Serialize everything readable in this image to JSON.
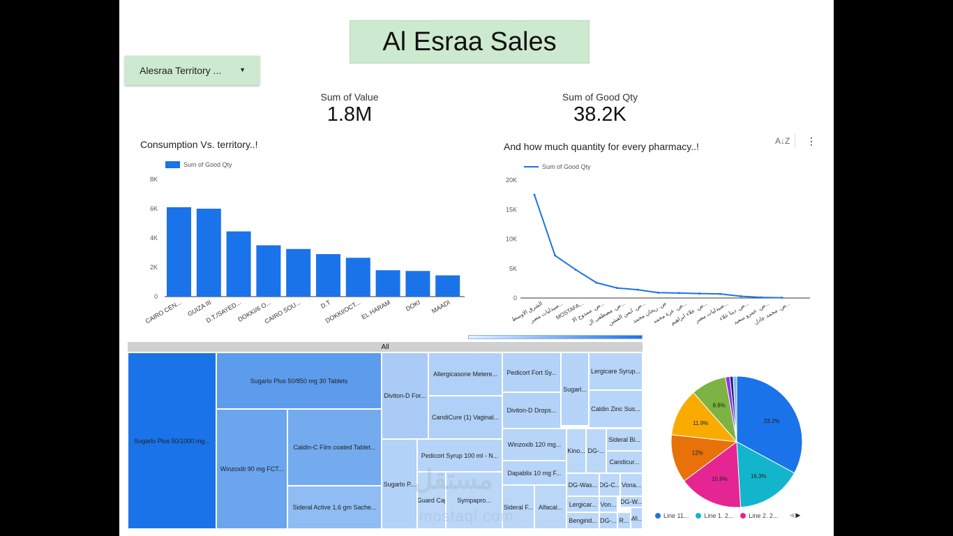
{
  "header": {
    "title": "Al Esraa Sales"
  },
  "filter": {
    "label": "Alesraa Territory ...",
    "icon": "dropdown-caret-icon"
  },
  "kpis": [
    {
      "label": "Sum of Value",
      "value": "1.8M"
    },
    {
      "label": "Sum of Good Qty",
      "value": "38.2K"
    }
  ],
  "bar_chart": {
    "title": "Consumption Vs. territory..!",
    "legend": "Sum of Good Qty",
    "y_ticks": [
      "8K",
      "6K",
      "4K",
      "2K",
      "0"
    ],
    "labels": [
      "CAIRO CEN...",
      "GUIZA III",
      "D.T./SAYED...",
      "DOKKI/6 O...",
      "CAIRO SOU...",
      "D.T",
      "DOKKI/OCT...",
      "EL HARAM",
      "DOKI",
      "MAADI"
    ]
  },
  "line_chart": {
    "title": "And how much quantity for every pharmacy..!",
    "legend": "Sum of Good Qty",
    "y_ticks": [
      "20K",
      "15K",
      "10K",
      "5K",
      "0"
    ],
    "labels": [
      "الشرق الاوسط",
      "صيدليات مصر...",
      "MOSTAFA...",
      "ص. ممدوح الا...",
      "ص. مصطفى ال...",
      "ص. ايمن الفشن...",
      "ص. ريحان محمد",
      "ص. عزة محمد...",
      "ص. علاء ابراهيم...",
      "صيدليات مصر...",
      "ص. دينا علاء...",
      "ص. عمرو سعيد...",
      "ص. محمد عادل..."
    ],
    "sort_icon": "sort-az-icon",
    "more_icon": "more-vert-icon"
  },
  "chart_data": [
    {
      "type": "bar",
      "title": "Consumption Vs. territory..!",
      "categories": [
        "CAIRO CEN...",
        "GUIZA III",
        "D.T./SAYED...",
        "DOKKI/6 O...",
        "CAIRO SOU...",
        "D.T",
        "DOKKI/OCT...",
        "EL HARAM",
        "DOKI",
        "MAADI"
      ],
      "series": [
        {
          "name": "Sum of Good Qty",
          "values": [
            6100,
            6000,
            4450,
            3500,
            3250,
            2900,
            2650,
            1800,
            1750,
            1450
          ]
        }
      ],
      "ylim": [
        0,
        8000
      ]
    },
    {
      "type": "line",
      "title": "And how much quantity for every pharmacy..!",
      "series": [
        {
          "name": "Sum of Good Qty",
          "values": [
            17500,
            7200,
            4800,
            2600,
            1700,
            1400,
            900,
            850,
            750,
            700,
            300,
            100,
            50
          ]
        }
      ],
      "ylim": [
        0,
        20000
      ]
    },
    {
      "type": "pie",
      "slices": [
        {
          "label": "Line 11...",
          "value": 33.2,
          "color": "#1a73e8",
          "text": "33.2%"
        },
        {
          "label": "Line 1. 2...",
          "value": 16.3,
          "color": "#12b5cb",
          "text": "16.3%"
        },
        {
          "label": "Line 2. 2...",
          "value": 15.9,
          "color": "#e52592",
          "text": "15.9%"
        },
        {
          "label": "",
          "value": 12.0,
          "color": "#e8710a",
          "text": "12%"
        },
        {
          "label": "",
          "value": 11.9,
          "color": "#f9ab00",
          "text": "11.9%"
        },
        {
          "label": "",
          "value": 8.8,
          "color": "#7cb342",
          "text": "8.8%"
        },
        {
          "label": "",
          "value": 1.1,
          "color": "#9334e6",
          "text": ""
        },
        {
          "label": "",
          "value": 0.8,
          "color": "#1a237e",
          "text": ""
        },
        {
          "label": "",
          "value": 0.9,
          "color": "#8ab4f8",
          "text": ""
        }
      ]
    }
  ],
  "treemap": {
    "header": "All",
    "cells": [
      {
        "label": "Sugarlo Plus 50/1000 mg...",
        "color": "#1a73e8"
      },
      {
        "label": "Sugarlo Plus 50/850 mg 30 Tablets",
        "color": "#5d9cec"
      },
      {
        "label": "Winzoxib 90 mg FCT...",
        "color": "#6aa5ee"
      },
      {
        "label": "Caldin-C Film coated Tablet...",
        "color": "#74abef"
      },
      {
        "label": "Sideral Active 1.6 gm Sache...",
        "color": "#8fbcf3"
      },
      {
        "label": "Diviton-D For...",
        "color": "#a9cbf5"
      },
      {
        "label": "Allergicasone Metere...",
        "color": "#b0d0f7"
      },
      {
        "label": "CandiCure (1) Vaginal...",
        "color": "#b0d0f7"
      },
      {
        "label": "Pedicort Fort Sy...",
        "color": "#b3d2f7"
      },
      {
        "label": "Diviton-D Drops...",
        "color": "#b3d2f7"
      },
      {
        "label": "Sugarl...",
        "color": "#b5d4f8"
      },
      {
        "label": "Lergicare Syrup...",
        "color": "#b7d5f8"
      },
      {
        "label": "Caldin Zinc Sus...",
        "color": "#b7d5f8"
      },
      {
        "label": "Sugarlo P...",
        "color": "#b3d2f7"
      },
      {
        "label": "Pedicort Syrup 100 ml - N...",
        "color": "#b5d4f8"
      },
      {
        "label": "TriGuard Cap...",
        "color": "#bad7f8"
      },
      {
        "label": "Sympapro...",
        "color": "#bad7f8"
      },
      {
        "label": "Winzoxib 120 mg...",
        "color": "#b7d5f8"
      },
      {
        "label": "Dapablix 10 mg F...",
        "color": "#b7d5f8"
      },
      {
        "label": "Sideral F...",
        "color": "#bad7f8"
      },
      {
        "label": "Alfacal...",
        "color": "#bad7f8"
      },
      {
        "label": "Kino...",
        "color": "#bad7f8"
      },
      {
        "label": "DG-...",
        "color": "#bad7f8"
      },
      {
        "label": "Sideral Bi...",
        "color": "#bad7f8"
      },
      {
        "label": "Candicur...",
        "color": "#bad7f8"
      },
      {
        "label": "DG-Was...",
        "color": "#bcd8f9"
      },
      {
        "label": "DG-C...",
        "color": "#bcd8f9"
      },
      {
        "label": "Vona...",
        "color": "#bcd8f9"
      },
      {
        "label": "Lergicar...",
        "color": "#bcd8f9"
      },
      {
        "label": "Von...",
        "color": "#bcd8f9"
      },
      {
        "label": "DG-W...",
        "color": "#bcd8f9"
      },
      {
        "label": "Bengirid...",
        "color": "#bcd8f9"
      },
      {
        "label": "DG-...",
        "color": "#bcd8f9"
      },
      {
        "label": "R...",
        "color": "#bcd8f9"
      },
      {
        "label": "Wi...",
        "color": "#bcd8f9"
      }
    ]
  },
  "pie_legend": {
    "items": [
      {
        "label": "Line 11...",
        "color": "#1a73e8"
      },
      {
        "label": "Line 1. 2...",
        "color": "#12b5cb"
      },
      {
        "label": "Line 2. 2...",
        "color": "#e52592"
      }
    ],
    "prev_icon": "◀",
    "next_icon": "▶"
  }
}
